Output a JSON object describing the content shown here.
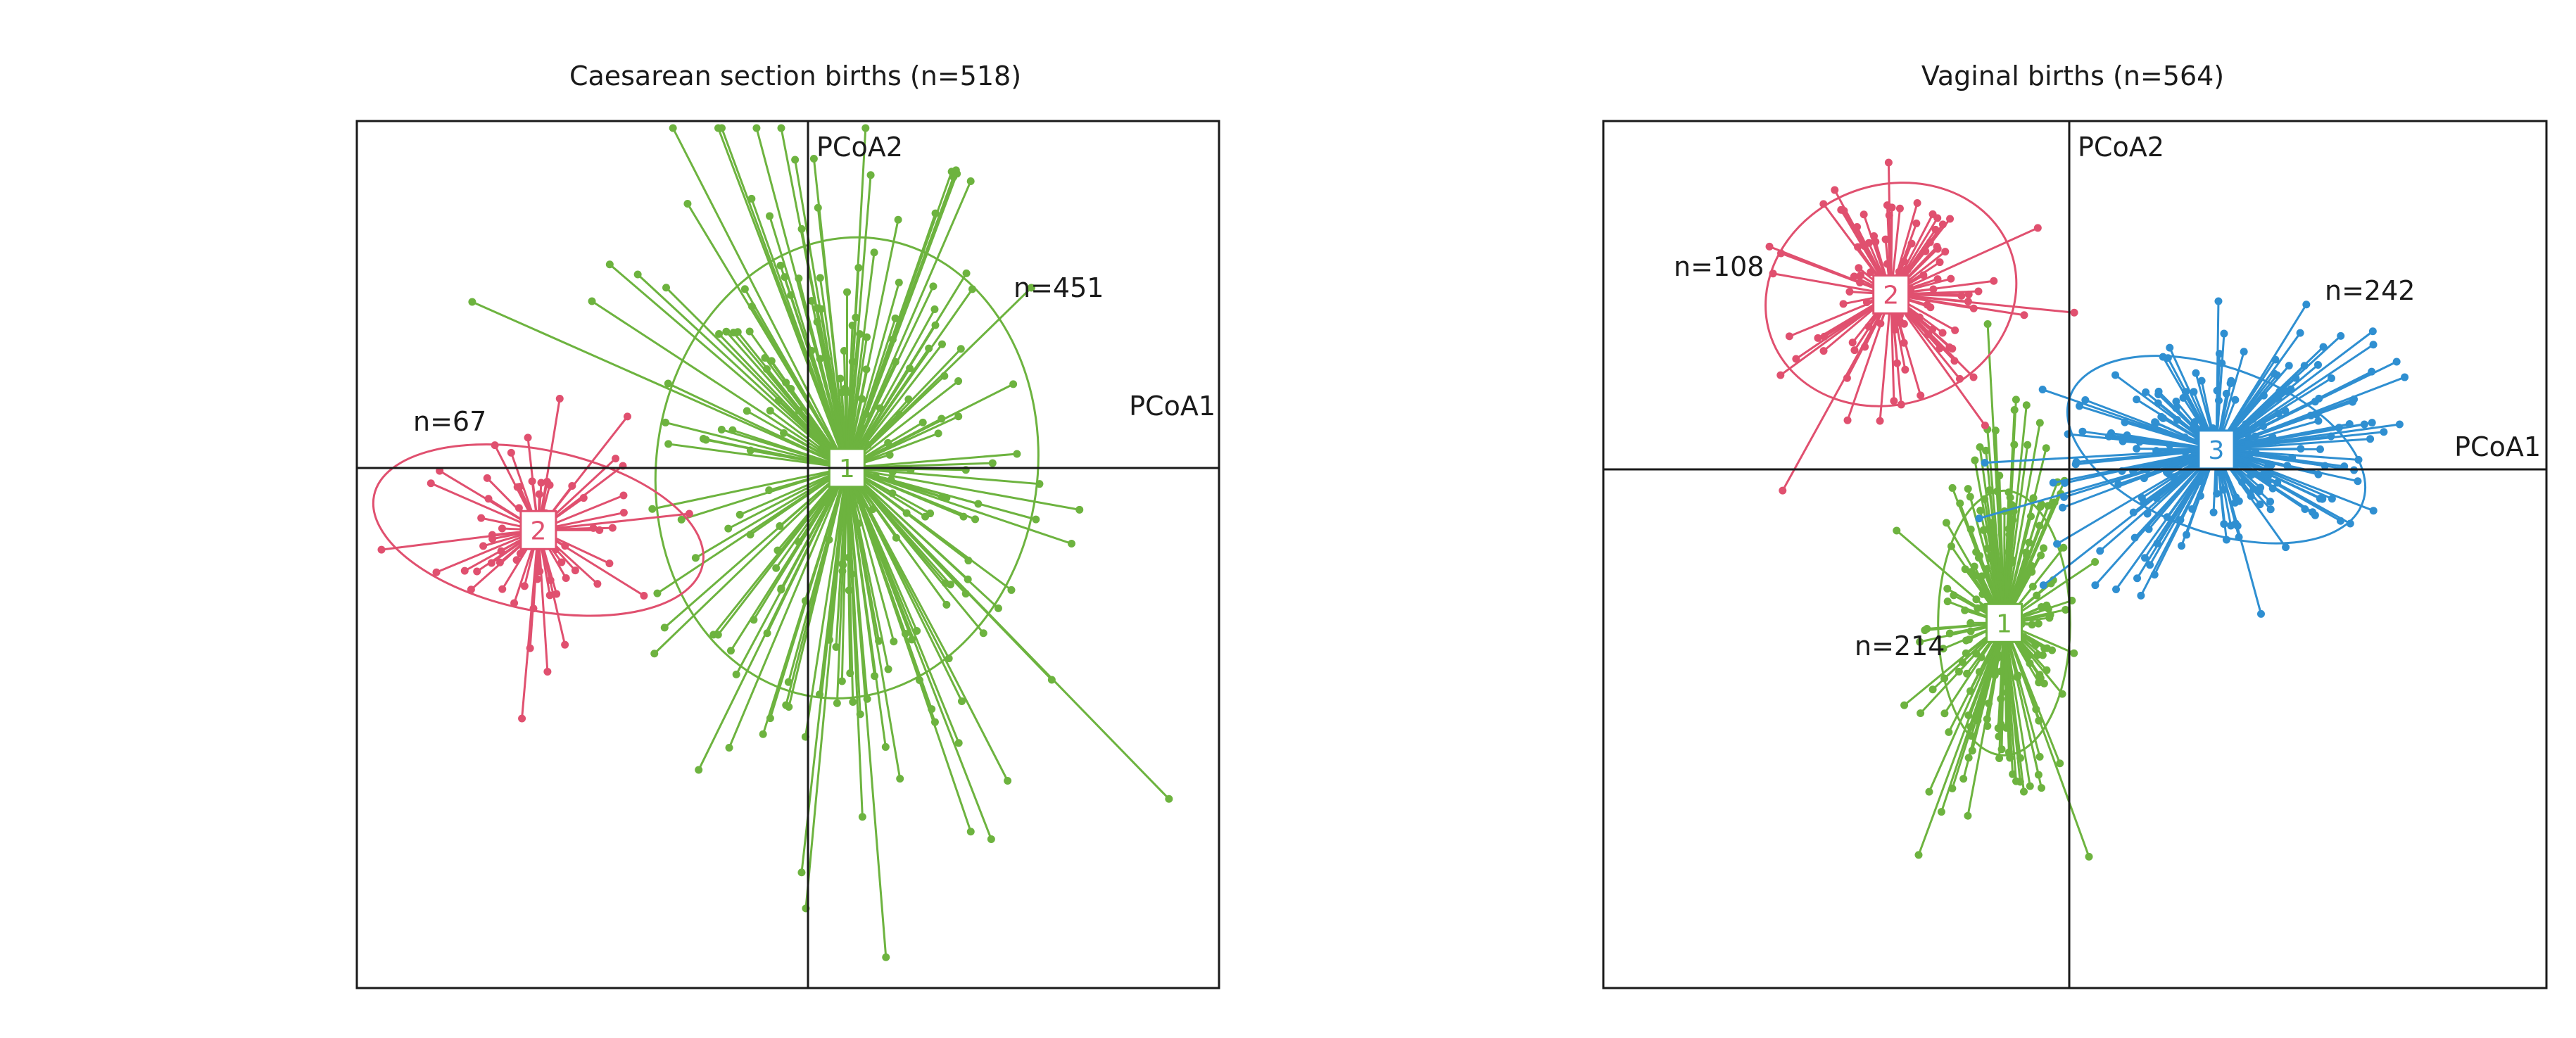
{
  "chart_data": [
    {
      "type": "scatter",
      "title": "Caesarean section births (n=518)",
      "xlabel": "PCoA1",
      "ylabel": "PCoA2",
      "xlim": [
        -1.0,
        0.9
      ],
      "ylim": [
        -1.15,
        0.8
      ],
      "grid": false,
      "legend": "none",
      "clusters": [
        {
          "id": "1",
          "n_label": "n=451",
          "n": 451,
          "color": "#6db33f",
          "centroid": [
            0.08,
            0.02
          ],
          "ellipse": {
            "rx": 0.42,
            "ry": 0.52,
            "angle_deg": -8
          },
          "spread_x": 0.22,
          "spread_y": 0.42
        },
        {
          "id": "2",
          "n_label": "n=67",
          "n": 67,
          "color": "#e0506f",
          "centroid": [
            -0.6,
            -0.12
          ],
          "ellipse": {
            "rx": 0.37,
            "ry": 0.18,
            "angle_deg": -12
          },
          "spread_x": 0.12,
          "spread_y": 0.12
        }
      ]
    },
    {
      "type": "scatter",
      "title": "Vaginal births (n=564)",
      "xlabel": "PCoA1",
      "ylabel": "PCoA2",
      "xlim": [
        -1.0,
        1.0
      ],
      "ylim": [
        -1.1,
        0.8
      ],
      "grid": false,
      "legend": "none",
      "clusters": [
        {
          "id": "1",
          "n_label": "n=214",
          "n": 214,
          "color": "#6db33f",
          "centroid": [
            -0.15,
            -0.3
          ],
          "ellipse": {
            "rx": 0.14,
            "ry": 0.29,
            "angle_deg": 0
          },
          "spread_x": 0.08,
          "spread_y": 0.2
        },
        {
          "id": "2",
          "n_label": "n=108",
          "n": 108,
          "color": "#e0506f",
          "centroid": [
            -0.39,
            0.42
          ],
          "ellipse": {
            "rx": 0.27,
            "ry": 0.24,
            "angle_deg": 20
          },
          "spread_x": 0.12,
          "spread_y": 0.12
        },
        {
          "id": "3",
          "n_label": "n=242",
          "n": 242,
          "color": "#2f8fd1",
          "centroid": [
            0.3,
            0.08
          ],
          "ellipse": {
            "rx": 0.33,
            "ry": 0.18,
            "angle_deg": -20
          },
          "spread_x": 0.18,
          "spread_y": 0.13
        }
      ]
    }
  ]
}
